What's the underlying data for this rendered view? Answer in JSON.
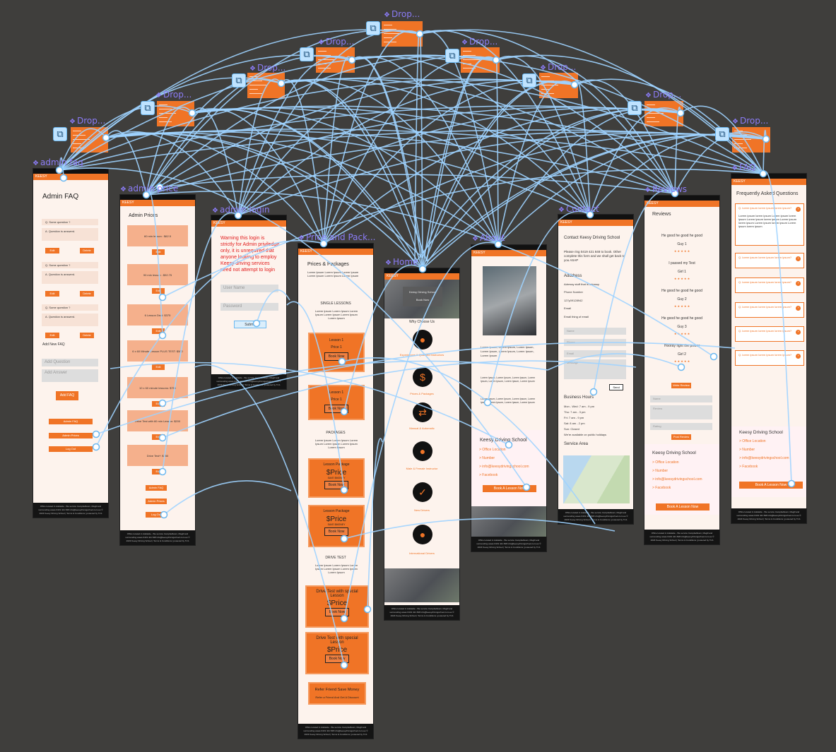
{
  "frames": {
    "admin_faq": {
      "label": "admin faq",
      "title": "Admin FAQ",
      "qa": [
        {
          "q": "Q. Some question ?",
          "a": "A. Question is answerd."
        },
        {
          "q": "Q. Some question ?",
          "a": "A. Question is answerd."
        },
        {
          "q": "Q. Some question ?",
          "a": "A. Question is answerd."
        }
      ],
      "edit": "Edit",
      "delete": "Delete",
      "add_new": "Add New FAQ",
      "add_question": "Add Question",
      "add_answer": "Add Answer",
      "add_faq": "Add FAQ",
      "admin_faq": "Admin FAQ",
      "admin_prices": "Admin Prices",
      "log_out": "Log Out"
    },
    "admin_price": {
      "label": "admin price",
      "title": "Admin Prices",
      "items": [
        "60 min lesson : $62.5",
        "90 min lesson : $92.75",
        "6 Lesson Deal: $375",
        "6 x 60 Minute Lesson PLUS TEST: $500",
        "10 x 60 minute lessons: $750",
        "Drive Test with 60 min Lesson: $200",
        "Drive Test*: $150"
      ],
      "edit": "Edit",
      "admin_faq": "Admin FAQ",
      "admin_prices": "Admin Prices",
      "log_out": "Log Out"
    },
    "admin_login": {
      "label": "admin login",
      "warning": "Warning this login is strictly for Admin priviledge only, it is unrequired that anyone looking to employ Keesy driving services need not attempt to login",
      "username": "User Name",
      "password": "Password",
      "submit": "Submit"
    },
    "prices": {
      "label": "Price and Pack...",
      "title": "Prices & Packages",
      "lorem": "Lorem Ipsum Lorem Ipsum Lorem Ipsum Lorem Ipsum Lorem Ipsum Lorem Ipsum",
      "single": "SINGLE LESSONS",
      "lesson1": "Lesson 1",
      "price1": "Price 1",
      "book": "Book Now",
      "packages": "PACKAGES",
      "lesson_pkg": "Lesson Package",
      "price": "$Price",
      "save": "SAVE $MONEY",
      "drive_test": "DRIVE TEST",
      "dt_special": "Drive Test with special Lesson",
      "refer": "Refer Friend Save Money",
      "refer_sub": "Refer a Friend And Get A Discount"
    },
    "home": {
      "label": "Home",
      "hero": "Keesy Driving School",
      "hero_sub": "Book Now",
      "why": "Why Choose Us",
      "features": [
        "Experiences & Qualified Instructors",
        "Prices & Packages",
        "Manual & Automatic",
        "Male & Female Instructor",
        "New Drivers",
        "International Drivers"
      ]
    },
    "about": {
      "label": "About",
      "lorem": "Lorem Ipsum, Lorem Ipsum, Lorem Ipsum, Lorem Ipsum, Lorem Ipsum, Lorem Ipsum, Lorem Ipsum",
      "school": "Keesy Driving School",
      "links": [
        "> Office Location",
        "> Number",
        "> info@keesydrivingschool.com",
        "> Facebook"
      ],
      "book": "Book A Lesson Now"
    },
    "contact": {
      "label": "Contact",
      "title": "Contact Keesy Driving School",
      "intro": "Please ring 0419 421 848 to book. Other complete this form and we shall get back to you ASAP",
      "address_h": "Adddress",
      "address": "Adressy stuff that is adressy",
      "phone_h": "Phone Number",
      "phone": "127y09128942",
      "email_h": "Email",
      "email": "Email thing of email",
      "name": "Name",
      "phone_f": "Phone",
      "email_f": "Email",
      "message": "Message",
      "send": "Send",
      "hours_h": "Business Hours",
      "hours": [
        "Mon - Wed: 7 am - 9 pm",
        "Thu: 7 am - 3 pm",
        "Fri: 7 am - 9 pm",
        "Sat: 8 am - 2 pm",
        "Sun: Closed",
        "We're available on public holidays"
      ],
      "service": "Service Area"
    },
    "reviews": {
      "label": "Reviews",
      "title": "Reviews",
      "items": [
        {
          "t": "He good he good he good",
          "n": "Guy 1"
        },
        {
          "t": "I passed my Test",
          "n": "Girl 1"
        },
        {
          "t": "He good he good he good",
          "n": "Guy 2"
        },
        {
          "t": "He good he good he good",
          "n": "Guy 3"
        },
        {
          "t": "Hooray fight the power",
          "n": "Girl 2"
        }
      ],
      "stars": "★ ★ ★ ★ ★",
      "write": "Write Review",
      "name": "Name",
      "review": "Review",
      "rating": "Rating",
      "post": "Post Review",
      "school": "Keesy Driving School",
      "links": [
        "> Office Location",
        "> Number",
        "> info@keesydrivingschool.com",
        "> Facebook"
      ],
      "book": "Book A Lesson Now"
    },
    "faq": {
      "label": "FAQ",
      "title": "Frequently Asked Questions",
      "q": "Q. lorem ipsum lorem ipsum lorem ipsum?",
      "a": "Lorem ipsum lorem ipsum Lorem ipsum lorem ipsum Lorem ipsum lorem ipsum Lorem ipsum lorem ipsum Lorem ipsum lorem ipsum Lorem ipsum lorem ipsum",
      "school": "Keesy Driving School",
      "links": [
        "> Office Location",
        "> Number",
        "> info@keesydrivingschool.com",
        "> Facebook"
      ],
      "book": "Book A Lesson Now"
    }
  },
  "dropdown_label": "Drop...",
  "brand": "KEESY",
  "footer": "Office located in Adelaide - We service Campbelltown, Magill and surrounding areas 0419 421 848 info@keesydrivingschool.com.au © 2023 Keesy Driving School | Terms & Conditions | powered by TLS"
}
